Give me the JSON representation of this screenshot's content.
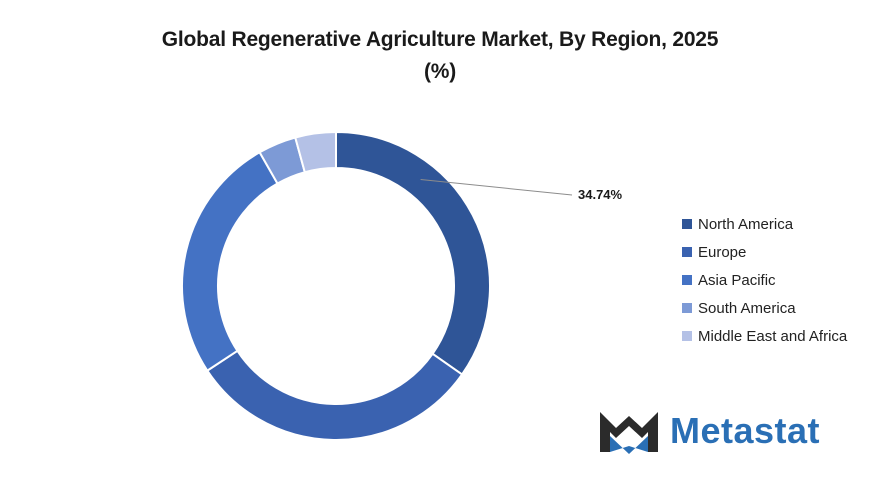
{
  "chart_data": {
    "type": "pie",
    "donut": true,
    "title": "Global Regenerative Agriculture Market, By Region, 2025",
    "subtitle": "(%)",
    "categories": [
      "North America",
      "Europe",
      "Asia Pacific",
      "South America",
      "Middle East and Africa"
    ],
    "values": [
      34.74,
      31.0,
      26.0,
      4.0,
      4.26
    ],
    "colors": [
      "#2f5597",
      "#3a62b0",
      "#4472c4",
      "#7d9ad6",
      "#b4c1e6"
    ],
    "data_labels": [
      {
        "category": "North America",
        "text": "34.74%"
      }
    ],
    "legend_position": "right"
  },
  "logo": {
    "text": "Metastat"
  }
}
